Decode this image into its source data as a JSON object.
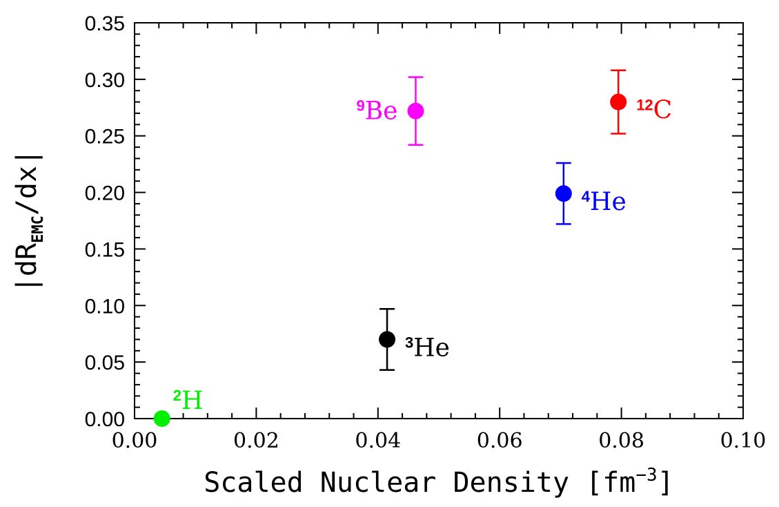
{
  "chart_data": {
    "type": "scatter",
    "title": "",
    "xlabel": "Scaled Nuclear Density [fm",
    "xlabel_sup": "−3",
    "xlabel_close": "]",
    "ylabel": "|dR",
    "ylabel_sub": "EMC",
    "ylabel_tail": "/dx|",
    "xlim": [
      0.0,
      0.1
    ],
    "ylim": [
      0.0,
      0.35
    ],
    "x_ticks": [
      "0.00",
      "0.02",
      "0.04",
      "0.06",
      "0.08",
      "0.10"
    ],
    "y_ticks": [
      "0.00",
      "0.05",
      "0.10",
      "0.15",
      "0.20",
      "0.25",
      "0.30",
      "0.35"
    ],
    "grid": false,
    "points": [
      {
        "label_sup": "2",
        "label": "H",
        "x": 0.0045,
        "y": 0.0,
        "err": 0.0,
        "color": "#00ee00",
        "label_pos": "above-right"
      },
      {
        "label_sup": "3",
        "label": "He",
        "x": 0.0415,
        "y": 0.07,
        "err": 0.027,
        "color": "#000000",
        "label_pos": "right"
      },
      {
        "label_sup": "4",
        "label": "He",
        "x": 0.0705,
        "y": 0.199,
        "err": 0.027,
        "color": "#0000ff",
        "label_pos": "right"
      },
      {
        "label_sup": "9",
        "label": "Be",
        "x": 0.0462,
        "y": 0.272,
        "err": 0.03,
        "color": "#ff00ff",
        "label_pos": "left"
      },
      {
        "label_sup": "12",
        "label": "C",
        "x": 0.0795,
        "y": 0.28,
        "err": 0.028,
        "color": "#ff0000",
        "label_pos": "right"
      }
    ]
  }
}
